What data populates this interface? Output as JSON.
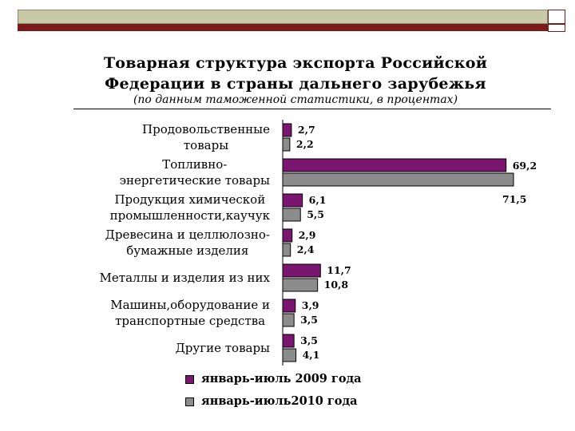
{
  "slide": {
    "title_line1": "Товарная  структура экспорта Российской",
    "title_line2": "Федерации в страны дальнего зарубежья",
    "subtitle": "(по данным таможенной статистики, в процентах)"
  },
  "colors": {
    "band": "#c9c9a8",
    "accent": "#7a1a1a",
    "series1": "#7b1670",
    "series2": "#8c8c8c"
  },
  "chart_data": {
    "type": "bar",
    "orientation": "horizontal",
    "categories": [
      [
        "Продовольственные",
        "товары"
      ],
      [
        "Топливно-",
        "энергетические товары"
      ],
      [
        "Продукция химической",
        "промышленности,каучук"
      ],
      [
        "Древесина и целлюлозно-",
        "бумажные изделия"
      ],
      [
        "Металлы и изделия из них"
      ],
      [
        "Машины,оборудование и",
        "транспортные средства"
      ],
      [
        "Другие товары"
      ]
    ],
    "series": [
      {
        "name": "январь-июль 2009 года",
        "values": [
          2.7,
          69.2,
          6.1,
          2.9,
          11.7,
          3.9,
          3.5
        ],
        "labels": [
          "2,7",
          "69,2",
          "6,1",
          "2,9",
          "11,7",
          "3,9",
          "3,5"
        ],
        "color": "#7b1670"
      },
      {
        "name": "январь-июль2010 года",
        "values": [
          2.2,
          71.5,
          5.5,
          2.4,
          10.8,
          3.5,
          4.1
        ],
        "labels": [
          "2,2",
          "71,5",
          "5,5",
          "2,4",
          "10,8",
          "3,5",
          "4,1"
        ],
        "color": "#8c8c8c"
      }
    ],
    "xlim": [
      0,
      71.5
    ],
    "grid": false,
    "legend": "bottom"
  }
}
